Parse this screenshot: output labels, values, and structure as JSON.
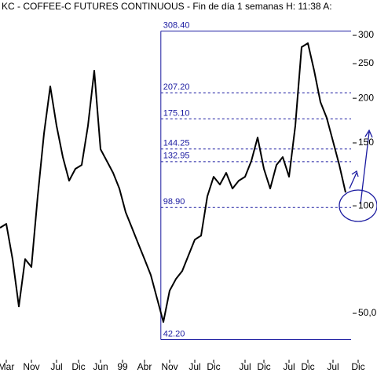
{
  "chart_data": {
    "type": "line",
    "title": "KC - COFFEE-C FUTURES CONTINUOUS - Fin de día 1 semanas H: 11:38 A:",
    "log_scale": true,
    "x": [
      0,
      1,
      2,
      3,
      4,
      5,
      6,
      7,
      8,
      9,
      10,
      11,
      12,
      13,
      14,
      15,
      16,
      17,
      18,
      19,
      20,
      21,
      22,
      23,
      24,
      25,
      26,
      27,
      28,
      29,
      30,
      31,
      32,
      33,
      34,
      35,
      36,
      37,
      38,
      39,
      40,
      41,
      42,
      43,
      44,
      45,
      46,
      47,
      48,
      49,
      50,
      51,
      52,
      53,
      54,
      55
    ],
    "series": [
      {
        "color": "#000000",
        "values": [
          86.8,
          89.0,
          70.9,
          52.3,
          70.9,
          67.4,
          106.3,
          159.3,
          215.9,
          167.6,
          136.9,
          117.6,
          126.9,
          130.1,
          167.6,
          238.9,
          144.0,
          133.5,
          123.7,
          111.8,
          96.0,
          86.8,
          78.4,
          70.9,
          64.0,
          55.0,
          47.3,
          57.9,
          62.4,
          65.7,
          72.7,
          80.4,
          82.5,
          106.3,
          120.6,
          114.7,
          123.7,
          111.8,
          117.6,
          120.6,
          133.5,
          155.3,
          126.9,
          111.8,
          130.1,
          136.9,
          120.6,
          167.6,
          278.1,
          285.2,
          238.9,
          195.1,
          176.3,
          151.5,
          130.1,
          109.0
        ]
      }
    ],
    "xlim": [
      0,
      60
    ],
    "xticks": [
      {
        "value": 1,
        "label": "Mar"
      },
      {
        "value": 5,
        "label": "Nov"
      },
      {
        "value": 9,
        "label": "Jul"
      },
      {
        "value": 12.5,
        "label": "Dic"
      },
      {
        "value": 16,
        "label": "Jun"
      },
      {
        "value": 19.5,
        "label": "99"
      },
      {
        "value": 23,
        "label": "Abr"
      },
      {
        "value": 27,
        "label": "Nov"
      },
      {
        "value": 31,
        "label": "Jul"
      },
      {
        "value": 34,
        "label": "Dic"
      },
      {
        "value": 39,
        "label": "Jul"
      },
      {
        "value": 42,
        "label": "Dic"
      },
      {
        "value": 46,
        "label": "Jul"
      },
      {
        "value": 49,
        "label": "Dic"
      },
      {
        "value": 53,
        "label": "Jul"
      },
      {
        "value": 57,
        "label": "Dic"
      }
    ],
    "ylim": [
      37.1,
      376.8
    ],
    "yticks": [
      300,
      250,
      200,
      150,
      100,
      {
        "value": 50,
        "label": "50,0"
      }
    ],
    "fibonacci": {
      "color": "#1a1aa0",
      "start_x": 25.6,
      "levels": [
        {
          "value": 308.4,
          "label": "308.40"
        },
        {
          "value": 207.2,
          "label": "207.20"
        },
        {
          "value": 175.1,
          "label": "175.10"
        },
        144.25,
        132.95,
        {
          "value": 98.9,
          "label": "98.90"
        },
        {
          "value": 42.2,
          "label": "42.20"
        }
      ]
    }
  }
}
